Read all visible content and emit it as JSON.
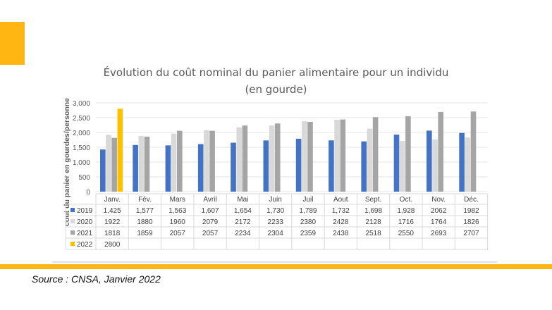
{
  "source": "Source : CNSA, Janvier 2022",
  "colors": {
    "accent": "#FFB612"
  },
  "chart_data": {
    "type": "bar",
    "title": "Évolution du coût nominal du panier alimentaire pour un individu",
    "subtitle": "(en gourde)",
    "xlabel": "",
    "ylabel": "cout du panier en gourdes/personne",
    "ylim": [
      0,
      3000
    ],
    "yticks": [
      0,
      500,
      1000,
      1500,
      2000,
      2500,
      3000
    ],
    "ytick_labels": [
      "0",
      "500",
      "1,000",
      "1,500",
      "2,000",
      "2,500",
      "3,000"
    ],
    "grid": true,
    "legend": "data-table-left",
    "categories": [
      "Janv.",
      "Fév.",
      "Mars",
      "Avril",
      "Mai",
      "Juin",
      "Juil",
      "Aout",
      "Sept.",
      "Oct.",
      "Nov.",
      "Déc."
    ],
    "series": [
      {
        "name": "2019",
        "color": "#4472C4",
        "values": [
          1425,
          1577,
          1563,
          1607,
          1654,
          1730,
          1789,
          1732,
          1698,
          1928,
          2062,
          1982
        ],
        "labels": [
          "1,425",
          "1,577",
          "1,563",
          "1,607",
          "1,654",
          "1,730",
          "1,789",
          "1,732",
          "1,698",
          "1,928",
          "2062",
          "1982"
        ]
      },
      {
        "name": "2020",
        "color": "#D9D9D9",
        "values": [
          1922,
          1880,
          1960,
          2079,
          2172,
          2233,
          2380,
          2428,
          2128,
          1716,
          1764,
          1826
        ],
        "labels": [
          "1922",
          "1880",
          "1960",
          "2079",
          "2172",
          "2233",
          "2380",
          "2428",
          "2128",
          "1716",
          "1764",
          "1826"
        ]
      },
      {
        "name": "2021",
        "color": "#A5A5A5",
        "values": [
          1818,
          1859,
          2057,
          2057,
          2234,
          2304,
          2359,
          2438,
          2518,
          2550,
          2693,
          2707
        ],
        "labels": [
          "1818",
          "1859",
          "2057",
          "2057",
          "2234",
          "2304",
          "2359",
          "2438",
          "2518",
          "2550",
          "2693",
          "2707"
        ]
      },
      {
        "name": "2022",
        "color": "#FFC000",
        "values": [
          2800,
          null,
          null,
          null,
          null,
          null,
          null,
          null,
          null,
          null,
          null,
          null
        ],
        "labels": [
          "2800",
          "",
          "",
          "",
          "",
          "",
          "",
          "",
          "",
          "",
          "",
          ""
        ]
      }
    ]
  }
}
